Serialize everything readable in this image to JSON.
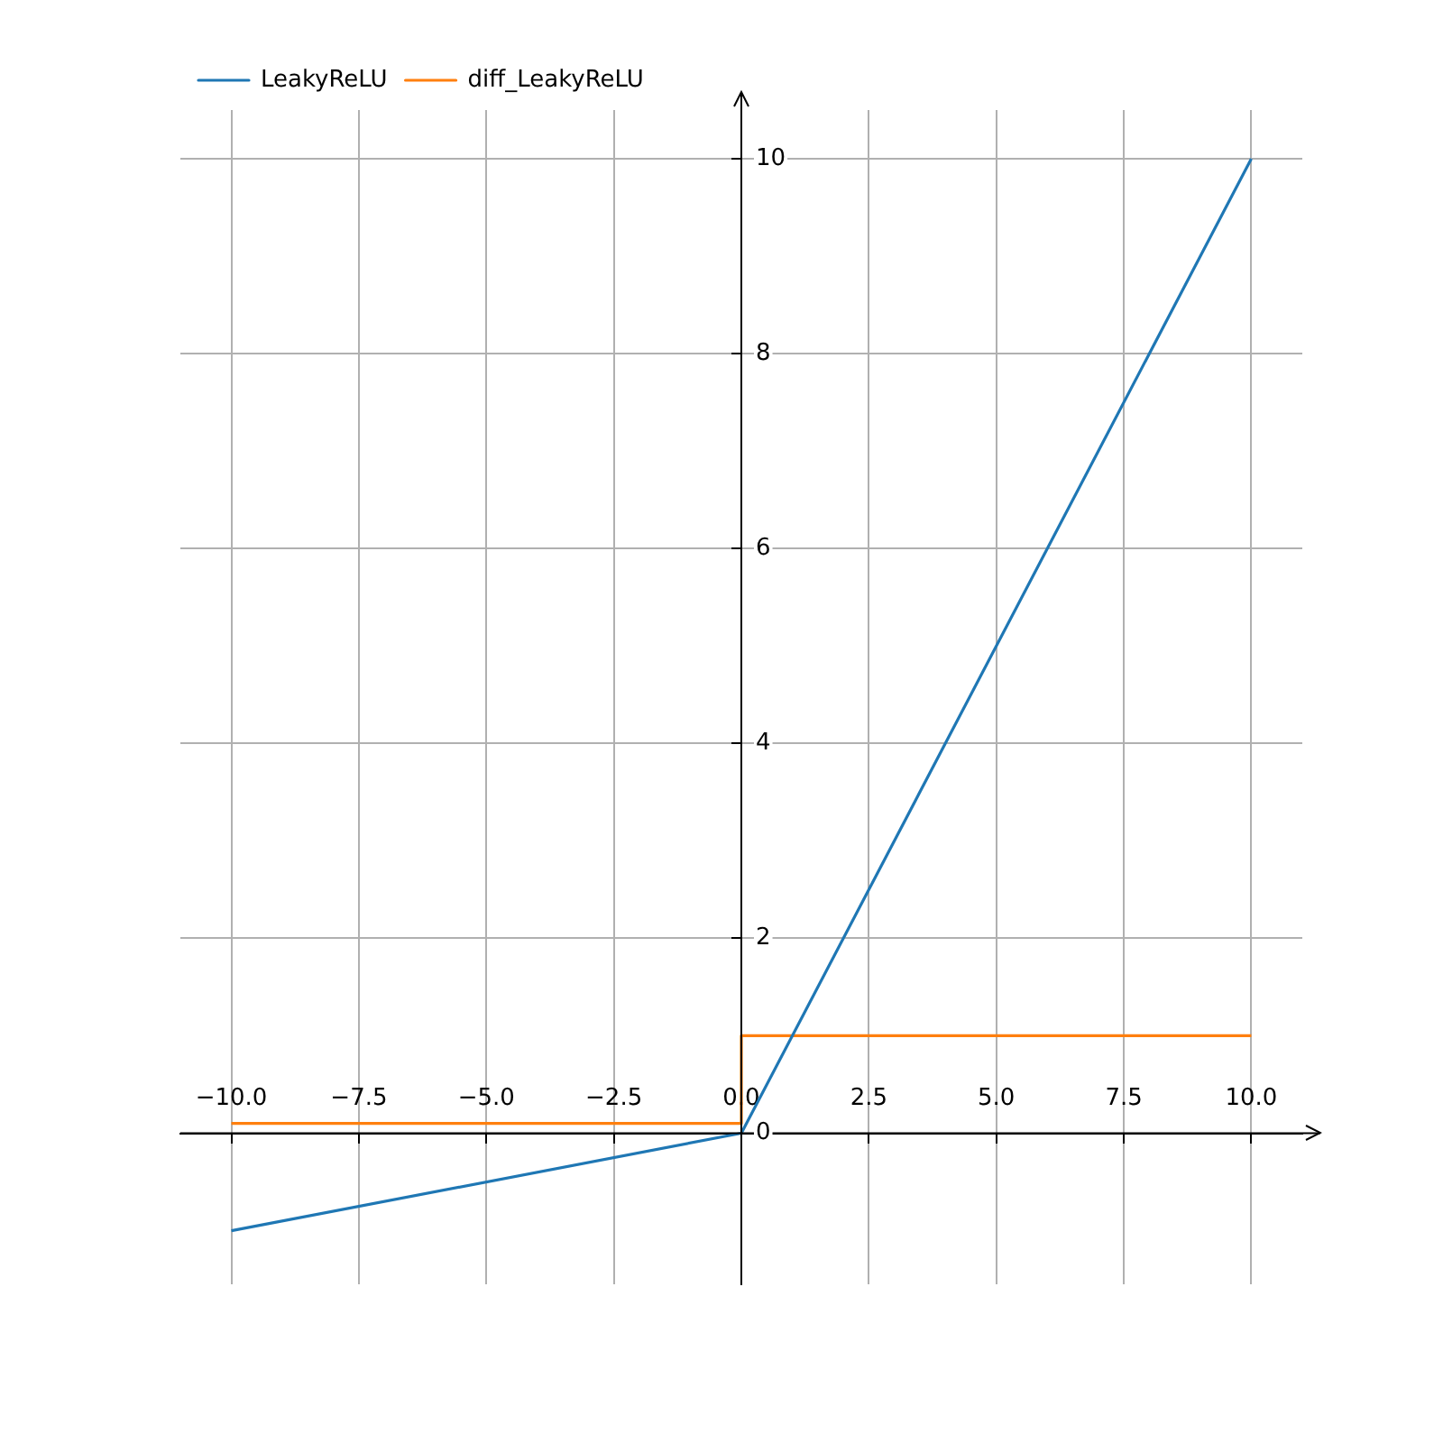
{
  "chart_data": {
    "type": "line",
    "series": [
      {
        "name": "LeakyReLU",
        "color": "#1f77b4",
        "x": [
          -10,
          0,
          10
        ],
        "values": [
          -1,
          0,
          10
        ]
      },
      {
        "name": "diff_LeakyReLU",
        "color": "#ff7f0e",
        "x": [
          -10,
          0,
          0,
          10
        ],
        "values": [
          0.1,
          0.1,
          1,
          1
        ]
      }
    ],
    "xlim": [
      -11,
      11
    ],
    "ylim": [
      -1.55,
      10.5
    ],
    "xticks": [
      {
        "value": -10,
        "label": "−10.0"
      },
      {
        "value": -7.5,
        "label": "−7.5"
      },
      {
        "value": -5,
        "label": "−5.0"
      },
      {
        "value": -2.5,
        "label": "−2.5"
      },
      {
        "value": 0,
        "label": "0.0"
      },
      {
        "value": 2.5,
        "label": "2.5"
      },
      {
        "value": 5,
        "label": "5.0"
      },
      {
        "value": 7.5,
        "label": "7.5"
      },
      {
        "value": 10,
        "label": "10.0"
      }
    ],
    "yticks": [
      0,
      2,
      4,
      6,
      8,
      10
    ],
    "grid": true,
    "legend": "top left",
    "marker": "none",
    "line_style": "solid"
  }
}
